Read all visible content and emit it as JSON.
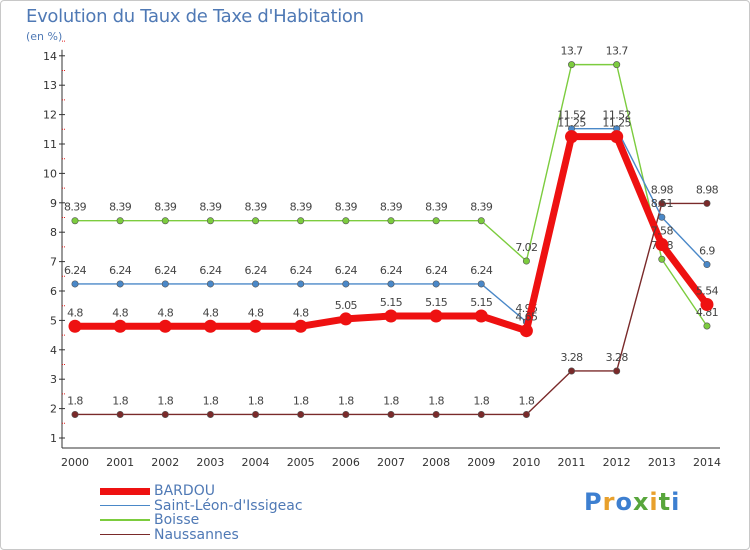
{
  "header": {
    "title": "Evolution du Taux de Taxe d'Habitation",
    "subtitle": "(en %)"
  },
  "logo": {
    "text": "Proxiti",
    "colors": [
      "#3d7fd0",
      "#e8a02c",
      "#3d7fd0",
      "#58a63c",
      "#e8a02c",
      "#58a63c",
      "#3d7fd0"
    ]
  },
  "chart_data": {
    "type": "line",
    "title": "Evolution du Taux de Taxe d'Habitation",
    "ylabel": "(en %)",
    "xlabel": "",
    "categories": [
      "2000",
      "2001",
      "2002",
      "2003",
      "2004",
      "2005",
      "2006",
      "2007",
      "2008",
      "2009",
      "2010",
      "2011",
      "2012",
      "2013",
      "2014"
    ],
    "ylim": [
      1,
      14
    ],
    "yticks": [
      1,
      2,
      3,
      4,
      5,
      6,
      7,
      8,
      9,
      10,
      11,
      12,
      13,
      14
    ],
    "grid": "none",
    "legend": "bottom-left",
    "series": [
      {
        "name": "Naussannes",
        "color": "#7a2a2a",
        "values": [
          1.8,
          1.8,
          1.8,
          1.8,
          1.8,
          1.8,
          1.8,
          1.8,
          1.8,
          1.8,
          1.8,
          3.28,
          3.28,
          8.98,
          8.98
        ],
        "labels": [
          "1.8",
          "1.8",
          "1.8",
          "1.8",
          "1.8",
          "1.8",
          "1.8",
          "1.8",
          "1.8",
          "1.8",
          "1.8",
          "3.28",
          "3.28",
          "8.98",
          "8.98"
        ]
      },
      {
        "name": "Boisse",
        "color": "#7ccc3e",
        "values": [
          8.39,
          8.39,
          8.39,
          8.39,
          8.39,
          8.39,
          8.39,
          8.39,
          8.39,
          8.39,
          7.02,
          13.7,
          13.7,
          7.08,
          4.81
        ],
        "labels": [
          "8.39",
          "8.39",
          "8.39",
          "8.39",
          "8.39",
          "8.39",
          "8.39",
          "8.39",
          "8.39",
          "8.39",
          "7.02",
          "13.7",
          "13.7",
          "7.08",
          "4.81"
        ]
      },
      {
        "name": "Saint-Léon-d'Issigeac",
        "color": "#4a88c8",
        "values": [
          6.24,
          6.24,
          6.24,
          6.24,
          6.24,
          6.24,
          6.24,
          6.24,
          6.24,
          6.24,
          4.95,
          11.52,
          11.52,
          8.51,
          6.9
        ],
        "labels": [
          "6.24",
          "6.24",
          "6.24",
          "6.24",
          "6.24",
          "6.24",
          "6.24",
          "6.24",
          "6.24",
          "6.24",
          "4.95",
          "11.52",
          "11.52",
          "8.51",
          "6.9"
        ]
      },
      {
        "name": "BARDOU",
        "color": "#ee1111",
        "values": [
          4.8,
          4.8,
          4.8,
          4.8,
          4.8,
          4.8,
          5.05,
          5.15,
          5.15,
          5.15,
          4.65,
          11.25,
          11.25,
          7.58,
          5.54
        ],
        "labels": [
          "4.8",
          "4.8",
          "4.8",
          "4.8",
          "4.8",
          "4.8",
          "5.05",
          "5.15",
          "5.15",
          "5.15",
          "4.65",
          "11.25",
          "11.25",
          "7.58",
          "5.54"
        ]
      }
    ]
  },
  "legend_order": [
    "BARDOU",
    "Saint-Léon-d'Issigeac",
    "Boisse",
    "Naussannes"
  ]
}
